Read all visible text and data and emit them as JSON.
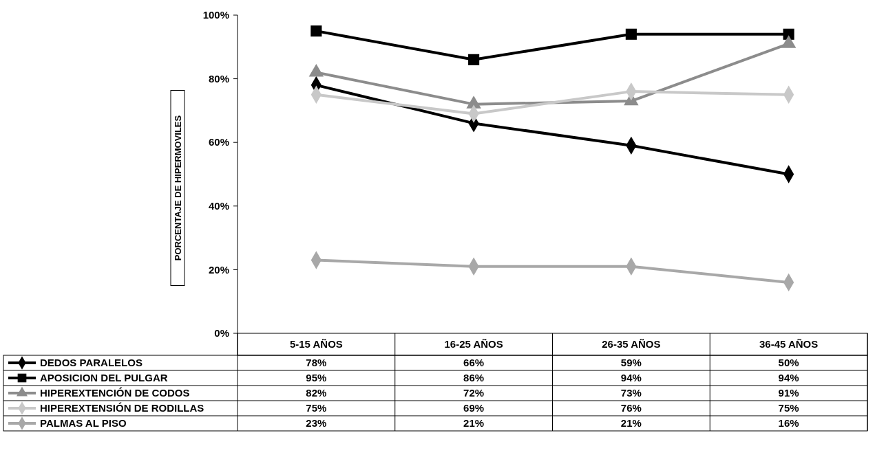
{
  "chart_data": {
    "type": "line",
    "ylabel": "PORCENTAJE DE HIPERMOVILES",
    "categories": [
      "5-15 AÑOS",
      "16-25 AÑOS",
      "26-35 AÑOS",
      "36-45 AÑOS"
    ],
    "ylim": [
      0,
      100
    ],
    "yticks": [
      {
        "value": 0,
        "label": "0%"
      },
      {
        "value": 20,
        "label": "20%"
      },
      {
        "value": 40,
        "label": "40%"
      },
      {
        "value": 60,
        "label": "60%"
      },
      {
        "value": 80,
        "label": "80%"
      },
      {
        "value": 100,
        "label": "100%"
      }
    ],
    "legend": "bottom",
    "line_style": "solid",
    "series": [
      {
        "name": "DEDOS PARALELOS",
        "color": "#000000",
        "marker": "diamond",
        "values": [
          78,
          66,
          59,
          50
        ],
        "value_labels": [
          "78%",
          "66%",
          "59%",
          "50%"
        ]
      },
      {
        "name": "APOSICION DEL PULGAR",
        "color": "#000000",
        "marker": "square",
        "values": [
          95,
          86,
          94,
          94
        ],
        "value_labels": [
          "95%",
          "86%",
          "94%",
          "94%"
        ]
      },
      {
        "name": "HIPEREXTENCIÓN DE CODOS",
        "color": "#8c8c8c",
        "marker": "triangle",
        "values": [
          82,
          72,
          73,
          91
        ],
        "value_labels": [
          "82%",
          "72%",
          "73%",
          "91%"
        ]
      },
      {
        "name": "HIPEREXTENSIÓN DE RODILLAS",
        "color": "#c8c8c8",
        "marker": "diamond",
        "values": [
          75,
          69,
          76,
          75
        ],
        "value_labels": [
          "75%",
          "69%",
          "76%",
          "75%"
        ]
      },
      {
        "name": "PALMAS AL PISO",
        "color": "#a8a8a8",
        "marker": "diamond",
        "values": [
          23,
          21,
          21,
          16
        ],
        "value_labels": [
          "23%",
          "21%",
          "21%",
          "16%"
        ]
      }
    ]
  }
}
